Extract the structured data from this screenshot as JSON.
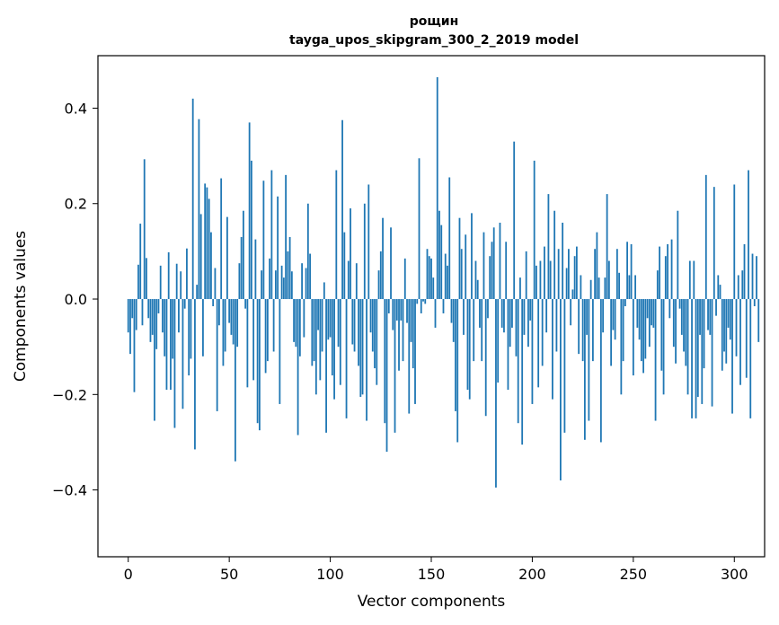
{
  "chart_data": {
    "type": "bar",
    "title": "рощин",
    "subtitle": "tayga_upos_skipgram_300_2_2019 model",
    "xlabel": "Vector components",
    "ylabel": "Components values",
    "xlim": [
      -15,
      315
    ],
    "ylim": [
      -0.54,
      0.51
    ],
    "xticks": [
      0,
      50,
      100,
      150,
      200,
      250,
      300
    ],
    "xtick_labels": [
      "0",
      "50",
      "100",
      "150",
      "200",
      "250",
      "300"
    ],
    "yticks": [
      -0.4,
      -0.2,
      0.0,
      0.2,
      0.4
    ],
    "ytick_labels": [
      "−0.4",
      "−0.2",
      "0.0",
      "0.2",
      "0.4"
    ],
    "bar_color": "#1f77b4",
    "values": [
      -0.07,
      -0.115,
      -0.04,
      -0.195,
      -0.065,
      0.072,
      0.158,
      -0.055,
      0.293,
      0.086,
      -0.04,
      -0.09,
      -0.075,
      -0.255,
      -0.105,
      -0.03,
      0.07,
      -0.07,
      -0.12,
      -0.19,
      0.098,
      -0.19,
      -0.125,
      -0.27,
      0.074,
      -0.07,
      0.058,
      -0.23,
      -0.02,
      0.106,
      -0.16,
      -0.125,
      0.42,
      -0.315,
      0.03,
      0.377,
      0.178,
      -0.12,
      0.242,
      0.234,
      0.21,
      0.14,
      -0.015,
      0.065,
      -0.235,
      -0.055,
      0.253,
      -0.14,
      -0.11,
      0.172,
      -0.05,
      -0.075,
      -0.095,
      -0.34,
      -0.1,
      0.075,
      0.13,
      0.185,
      -0.02,
      -0.185,
      0.37,
      0.29,
      -0.17,
      0.125,
      -0.26,
      -0.275,
      0.06,
      0.248,
      -0.155,
      -0.13,
      0.085,
      0.27,
      -0.11,
      0.06,
      0.215,
      -0.22,
      0.07,
      0.045,
      0.26,
      0.1,
      0.13,
      0.058,
      -0.09,
      -0.1,
      -0.285,
      -0.12,
      0.075,
      -0.08,
      0.065,
      0.2,
      0.095,
      -0.14,
      -0.13,
      -0.2,
      -0.065,
      -0.17,
      -0.11,
      0.035,
      -0.28,
      -0.085,
      -0.08,
      -0.16,
      -0.21,
      0.27,
      -0.1,
      -0.18,
      0.375,
      0.14,
      -0.25,
      0.08,
      0.19,
      -0.095,
      -0.11,
      0.075,
      -0.14,
      -0.205,
      -0.2,
      0.2,
      -0.255,
      0.24,
      -0.07,
      -0.11,
      -0.145,
      -0.18,
      0.06,
      0.1,
      0.17,
      -0.26,
      -0.32,
      -0.03,
      0.15,
      -0.065,
      -0.28,
      -0.045,
      -0.15,
      -0.045,
      -0.13,
      0.085,
      -0.05,
      -0.24,
      -0.09,
      -0.145,
      -0.22,
      -0.01,
      0.295,
      -0.03,
      -0.005,
      -0.01,
      0.105,
      0.09,
      0.085,
      0.045,
      -0.06,
      0.465,
      0.185,
      0.155,
      -0.03,
      0.095,
      0.07,
      0.255,
      -0.05,
      -0.09,
      -0.235,
      -0.3,
      0.17,
      0.105,
      -0.075,
      0.135,
      -0.19,
      -0.21,
      0.18,
      -0.13,
      0.08,
      0.04,
      -0.06,
      -0.13,
      0.14,
      -0.245,
      -0.04,
      0.09,
      0.12,
      0.15,
      -0.395,
      -0.175,
      0.16,
      -0.06,
      -0.07,
      0.12,
      -0.19,
      -0.1,
      -0.06,
      0.33,
      -0.12,
      -0.26,
      0.045,
      -0.305,
      -0.075,
      0.1,
      -0.1,
      -0.045,
      -0.22,
      0.29,
      0.07,
      -0.185,
      0.08,
      -0.14,
      0.11,
      -0.07,
      0.22,
      0.08,
      -0.21,
      0.185,
      -0.11,
      0.105,
      -0.38,
      0.16,
      -0.28,
      0.065,
      0.105,
      -0.055,
      0.02,
      0.09,
      0.11,
      -0.115,
      0.05,
      -0.13,
      -0.295,
      -0.075,
      -0.255,
      0.04,
      -0.13,
      0.105,
      0.14,
      0.045,
      -0.3,
      -0.07,
      0.045,
      0.22,
      0.08,
      -0.14,
      -0.065,
      -0.085,
      0.105,
      0.055,
      -0.2,
      -0.13,
      -0.015,
      0.12,
      0.05,
      0.115,
      -0.16,
      0.05,
      -0.06,
      -0.085,
      -0.13,
      -0.155,
      -0.125,
      -0.04,
      -0.1,
      -0.055,
      -0.06,
      -0.255,
      0.06,
      0.11,
      -0.15,
      -0.2,
      0.09,
      0.115,
      -0.04,
      0.125,
      -0.1,
      -0.135,
      0.185,
      -0.02,
      -0.075,
      -0.11,
      -0.14,
      -0.2,
      0.08,
      -0.25,
      0.08,
      -0.25,
      -0.205,
      -0.075,
      -0.22,
      -0.145,
      0.26,
      -0.065,
      -0.075,
      -0.225,
      0.235,
      -0.035,
      0.05,
      0.03,
      -0.15,
      -0.11,
      -0.135,
      -0.06,
      -0.085,
      -0.24,
      0.24,
      -0.12,
      0.05,
      -0.18,
      0.06,
      0.115,
      -0.165,
      0.27,
      -0.25,
      0.095,
      -0.015,
      0.09,
      -0.09
    ]
  }
}
